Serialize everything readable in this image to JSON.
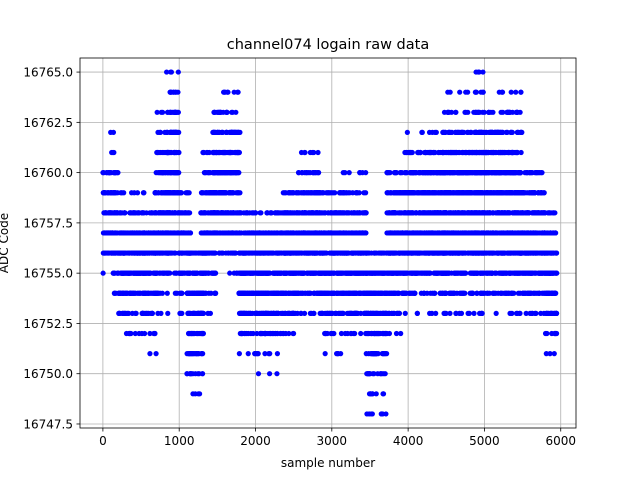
{
  "chart_data": {
    "type": "scatter",
    "title": "channel074 logain raw data",
    "xlabel": "sample number",
    "ylabel": "ADC Code",
    "xlim": [
      -300,
      6200
    ],
    "ylim": [
      16747.3,
      16765.7
    ],
    "xticks": [
      0,
      1000,
      2000,
      3000,
      4000,
      5000,
      6000
    ],
    "xtick_labels": [
      "0",
      "1000",
      "2000",
      "3000",
      "4000",
      "5000",
      "6000"
    ],
    "yticks": [
      16747.5,
      16750.0,
      16752.5,
      16755.0,
      16757.5,
      16760.0,
      16762.5,
      16765.0
    ],
    "ytick_labels": [
      "16747.5",
      "16750.0",
      "16752.5",
      "16755.0",
      "16757.5",
      "16760.0",
      "16762.5",
      "16765.0"
    ],
    "grid": true,
    "marker_color": "#0000ff",
    "series": [
      {
        "segments": [
          {
            "x": [
              0,
              120
            ],
            "min": 16755,
            "max": 16760,
            "weights": [
              0.2,
              2,
              3,
              2,
              2,
              1.5
            ]
          },
          {
            "x": [
              100,
              200
            ],
            "min": 16754,
            "max": 16762,
            "weights": [
              0.5,
              1,
              2,
              3,
              3,
              2,
              1.5,
              0.5,
              0.3
            ]
          },
          {
            "x": [
              200,
              550
            ],
            "min": 16752,
            "max": 16759,
            "weights": [
              0.4,
              1,
              2,
              3,
              3,
              2.5,
              1.5,
              0.4
            ]
          },
          {
            "x": [
              520,
              700
            ],
            "min": 16751,
            "max": 16758,
            "weights": [
              0.2,
              0.5,
              1,
              2,
              3,
              3,
              2,
              1
            ]
          },
          {
            "x": [
              680,
              860
            ],
            "min": 16753,
            "max": 16763,
            "weights": [
              0.3,
              0.6,
              1.5,
              2.5,
              3,
              3,
              2,
              1.5,
              1,
              0.5,
              0.3
            ]
          },
          {
            "x": [
              830,
              1000
            ],
            "min": 16754,
            "max": 16765,
            "weights": [
              0.3,
              0.5,
              1.5,
              2.5,
              3,
              3,
              2.5,
              2,
              1.5,
              0.8,
              0.5,
              0.2
            ]
          },
          {
            "x": [
              880,
              960
            ],
            "min": 16762,
            "max": 16765,
            "weights": [
              2,
              2,
              1,
              0.5
            ]
          },
          {
            "x": [
              1000,
              1150
            ],
            "min": 16753,
            "max": 16759,
            "weights": [
              0.3,
              1,
              2,
              3,
              3,
              2,
              1
            ]
          },
          {
            "x": [
              1100,
              1320
            ],
            "min": 16749,
            "max": 16756,
            "weights": [
              0.3,
              1,
              1.5,
              2,
              2.5,
              3,
              2,
              1.5
            ]
          },
          {
            "x": [
              1280,
              1480
            ],
            "min": 16753,
            "max": 16761,
            "weights": [
              0.3,
              1,
              2,
              3,
              3,
              2.5,
              2,
              1,
              0.5
            ]
          },
          {
            "x": [
              1440,
              1800
            ],
            "min": 16755,
            "max": 16764,
            "weights": [
              0.3,
              1,
              2,
              3,
              3,
              3,
              2.5,
              2,
              1,
              0.4
            ]
          },
          {
            "x": [
              1780,
              2000
            ],
            "min": 16751,
            "max": 16758,
            "weights": [
              0.3,
              1,
              2,
              3,
              3,
              2.5,
              2,
              1
            ]
          },
          {
            "x": [
              2000,
              2300
            ],
            "min": 16750,
            "max": 16758,
            "weights": [
              0.2,
              0.4,
              1.5,
              2.5,
              3,
              3,
              2.5,
              2,
              1
            ]
          },
          {
            "x": [
              2280,
              2550
            ],
            "min": 16752,
            "max": 16759,
            "weights": [
              0.5,
              1.5,
              2.5,
              3,
              3,
              2.5,
              2,
              1
            ]
          },
          {
            "x": [
              2550,
              2850
            ],
            "min": 16753,
            "max": 16761,
            "weights": [
              0.5,
              1.5,
              2.5,
              3,
              3,
              3,
              2,
              1,
              0.4
            ]
          },
          {
            "x": [
              2850,
              3150
            ],
            "min": 16751,
            "max": 16759,
            "weights": [
              0.3,
              0.6,
              1.5,
              2.5,
              3,
              3,
              2.5,
              2,
              1
            ]
          },
          {
            "x": [
              3150,
              3450
            ],
            "min": 16752,
            "max": 16760,
            "weights": [
              0.5,
              1.5,
              2.5,
              3,
              3,
              2.5,
              2,
              1,
              0.4
            ]
          },
          {
            "x": [
              3450,
              3720
            ],
            "min": 16748,
            "max": 16756,
            "weights": [
              0.5,
              0.5,
              1,
              1.5,
              2,
              2.5,
              3,
              2.5,
              1.5
            ]
          },
          {
            "x": [
              3720,
              3950
            ],
            "min": 16752,
            "max": 16760,
            "weights": [
              0.3,
              1,
              2,
              3,
              3,
              3,
              2.5,
              2,
              1
            ]
          },
          {
            "x": [
              3950,
              4500
            ],
            "min": 16753,
            "max": 16762,
            "weights": [
              0.3,
              1,
              2,
              3,
              3,
              3,
              3,
              2.5,
              1.5,
              0.3
            ]
          },
          {
            "x": [
              4450,
              4900
            ],
            "min": 16753,
            "max": 16764,
            "weights": [
              0.3,
              1,
              2,
              3,
              3,
              3,
              3,
              3,
              2,
              1,
              0.5,
              0.2
            ]
          },
          {
            "x": [
              4880,
              5100
            ],
            "min": 16753,
            "max": 16765,
            "weights": [
              0.3,
              1,
              2,
              3,
              3,
              3,
              3,
              3,
              2.5,
              2,
              1,
              0.5,
              0.3
            ]
          },
          {
            "x": [
              5100,
              5500
            ],
            "min": 16753,
            "max": 16764,
            "weights": [
              0.3,
              1,
              2,
              3,
              3,
              3,
              3,
              3,
              2,
              1.5,
              0.8,
              0.3
            ]
          },
          {
            "x": [
              5500,
              5800
            ],
            "min": 16753,
            "max": 16760,
            "weights": [
              0.5,
              1.5,
              2.5,
              3,
              3,
              3,
              2,
              1
            ]
          },
          {
            "x": [
              5800,
              5950
            ],
            "min": 16751,
            "max": 16758,
            "weights": [
              0.3,
              1,
              2,
              3,
              3,
              2.5,
              2,
              1
            ]
          }
        ]
      }
    ]
  }
}
